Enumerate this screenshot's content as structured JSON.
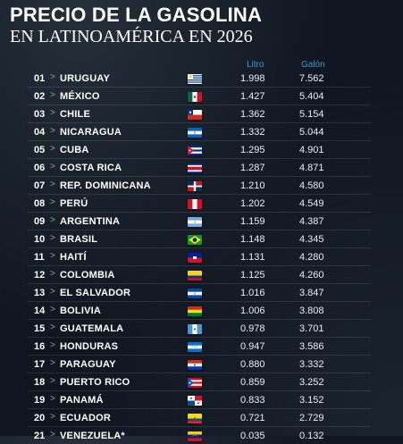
{
  "title": "PRECIO DE LA GASOLINA",
  "subtitle": "EN LATINOAMÉRICA EN 2026",
  "headers": {
    "litro": "Litro",
    "galon": "Galón"
  },
  "arrow": ">",
  "rows": [
    {
      "rank": "01",
      "country": "URUGUAY",
      "flag": "uruguay-flag-icon",
      "litro": "1.998",
      "galon": "7.562"
    },
    {
      "rank": "02",
      "country": "MÉXICO",
      "flag": "mexico-flag-icon",
      "litro": "1.427",
      "galon": "5.404"
    },
    {
      "rank": "03",
      "country": "CHILE",
      "flag": "chile-flag-icon",
      "litro": "1.362",
      "galon": "5.154"
    },
    {
      "rank": "04",
      "country": "NICARAGUA",
      "flag": "nicaragua-flag-icon",
      "litro": "1.332",
      "galon": "5.044"
    },
    {
      "rank": "05",
      "country": "CUBA",
      "flag": "cuba-flag-icon",
      "litro": "1.295",
      "galon": "4.901"
    },
    {
      "rank": "06",
      "country": "COSTA RICA",
      "flag": "costa-rica-flag-icon",
      "litro": "1.287",
      "galon": "4.871"
    },
    {
      "rank": "07",
      "country": "REP. DOMINICANA",
      "flag": "dominican-republic-flag-icon",
      "litro": "1.210",
      "galon": "4.580"
    },
    {
      "rank": "08",
      "country": "PERÚ",
      "flag": "peru-flag-icon",
      "litro": "1.202",
      "galon": "4.549"
    },
    {
      "rank": "09",
      "country": "ARGENTINA",
      "flag": "argentina-flag-icon",
      "litro": "1.159",
      "galon": "4.387"
    },
    {
      "rank": "10",
      "country": "BRASIL",
      "flag": "brazil-flag-icon",
      "litro": "1.148",
      "galon": "4.345"
    },
    {
      "rank": "11",
      "country": "HAITÍ",
      "flag": "haiti-flag-icon",
      "litro": "1.131",
      "galon": "4.280"
    },
    {
      "rank": "12",
      "country": "COLOMBIA",
      "flag": "colombia-flag-icon",
      "litro": "1.125",
      "galon": "4.260"
    },
    {
      "rank": "13",
      "country": "EL SALVADOR",
      "flag": "el-salvador-flag-icon",
      "litro": "1.016",
      "galon": "3.847"
    },
    {
      "rank": "14",
      "country": "BOLIVIA",
      "flag": "bolivia-flag-icon",
      "litro": "1.006",
      "galon": "3.808"
    },
    {
      "rank": "15",
      "country": "GUATEMALA",
      "flag": "guatemala-flag-icon",
      "litro": "0.978",
      "galon": "3.701"
    },
    {
      "rank": "16",
      "country": "HONDURAS",
      "flag": "honduras-flag-icon",
      "litro": "0.947",
      "galon": "3.586"
    },
    {
      "rank": "17",
      "country": "PARAGUAY",
      "flag": "paraguay-flag-icon",
      "litro": "0.880",
      "galon": "3.332"
    },
    {
      "rank": "18",
      "country": "PUERTO RICO",
      "flag": "puerto-rico-flag-icon",
      "litro": "0.859",
      "galon": "3.252"
    },
    {
      "rank": "19",
      "country": "PANAMÁ",
      "flag": "panama-flag-icon",
      "litro": "0.833",
      "galon": "3.152"
    },
    {
      "rank": "20",
      "country": "ECUADOR",
      "flag": "ecuador-flag-icon",
      "litro": "0.721",
      "galon": "2.729"
    },
    {
      "rank": "21",
      "country": "VENEZUELA*",
      "flag": "venezuela-flag-icon",
      "litro": "0.035",
      "galon": "0.132"
    }
  ]
}
